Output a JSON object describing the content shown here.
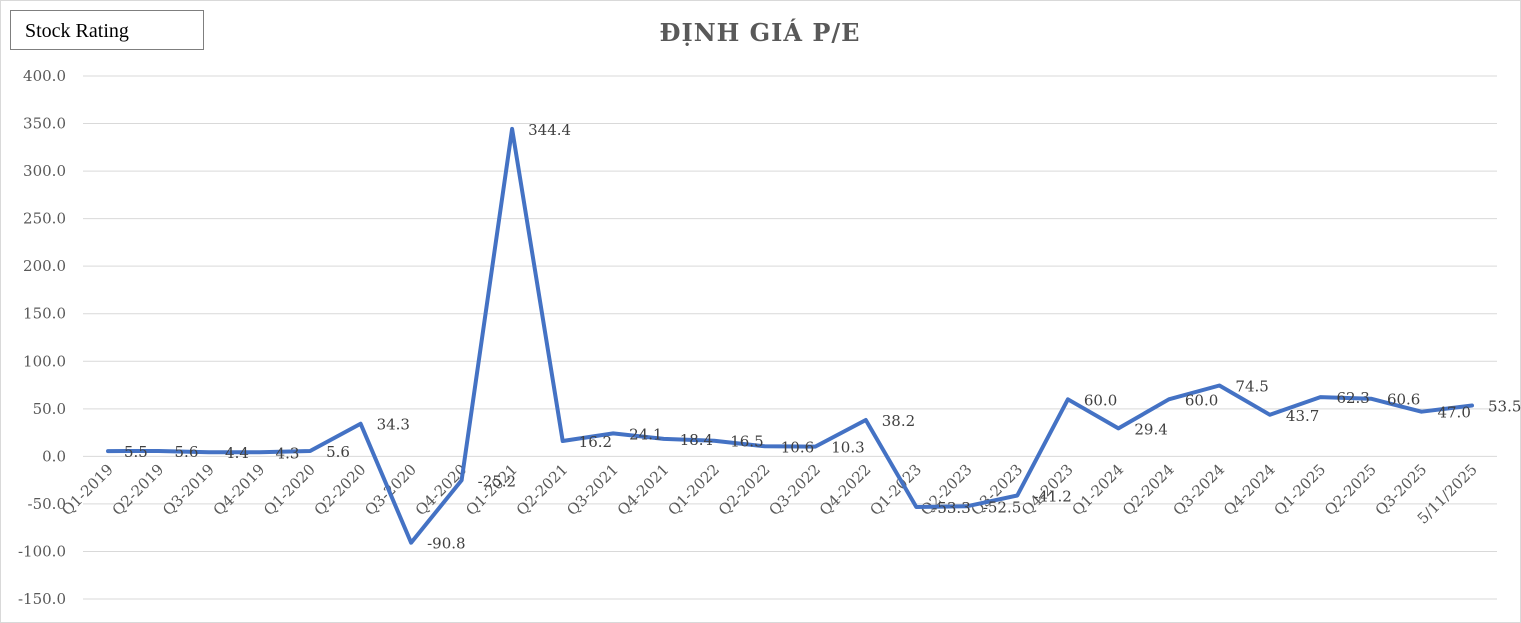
{
  "badge": {
    "label": "Stock Rating"
  },
  "chart_data": {
    "type": "line",
    "title": "ĐỊNH GIÁ P/E",
    "xlabel": "",
    "ylabel": "",
    "ylim": [
      -150,
      400
    ],
    "yticks": [
      "400.0",
      "350.0",
      "300.0",
      "250.0",
      "200.0",
      "150.0",
      "100.0",
      "50.0",
      "0.0",
      "-50.0",
      "-100.0",
      "-150.0"
    ],
    "ytick_values": [
      400,
      350,
      300,
      250,
      200,
      150,
      100,
      50,
      0,
      -50,
      -100,
      -150
    ],
    "grid": true,
    "legend": "none",
    "line_color": "#4472c4",
    "categories": [
      "Q1-2019",
      "Q2-2019",
      "Q3-2019",
      "Q4-2019",
      "Q1-2020",
      "Q2-2020",
      "Q3-2020",
      "Q4-2020",
      "Q1-2021",
      "Q2-2021",
      "Q3-2021",
      "Q4-2021",
      "Q1-2022",
      "Q2-2022",
      "Q3-2022",
      "Q4-2022",
      "Q1-2023",
      "Q2-2023",
      "Q3-2023",
      "Q4-2023",
      "Q1-2024",
      "Q2-2024",
      "Q3-2024",
      "Q4-2024",
      "Q1-2025",
      "Q2-2025",
      "Q3-2025",
      "5/11/2025"
    ],
    "series": [
      {
        "values": [
          5.5,
          5.6,
          4.4,
          4.3,
          5.6,
          34.3,
          -90.8,
          -25.2,
          344.4,
          16.2,
          24.1,
          18.4,
          16.5,
          10.6,
          10.3,
          38.2,
          -53.3,
          -52.5,
          -41.2,
          60.0,
          29.4,
          60.0,
          74.5,
          43.7,
          62.3,
          60.6,
          47.0,
          53.5
        ],
        "labels": [
          "5.5",
          "5.6",
          "4.4",
          "4.3",
          "5.6",
          "34.3",
          "-90.8",
          "-25.2",
          "344.4",
          "16.2",
          "24.1",
          "18.4",
          "16.5",
          "10.6",
          "10.3",
          "38.2",
          "-53.3",
          "-52.5",
          "-41.2",
          "60.0",
          "29.4",
          "60.0",
          "74.5",
          "43.7",
          "62.3",
          "60.6",
          "47.0",
          "53.5"
        ]
      }
    ]
  }
}
